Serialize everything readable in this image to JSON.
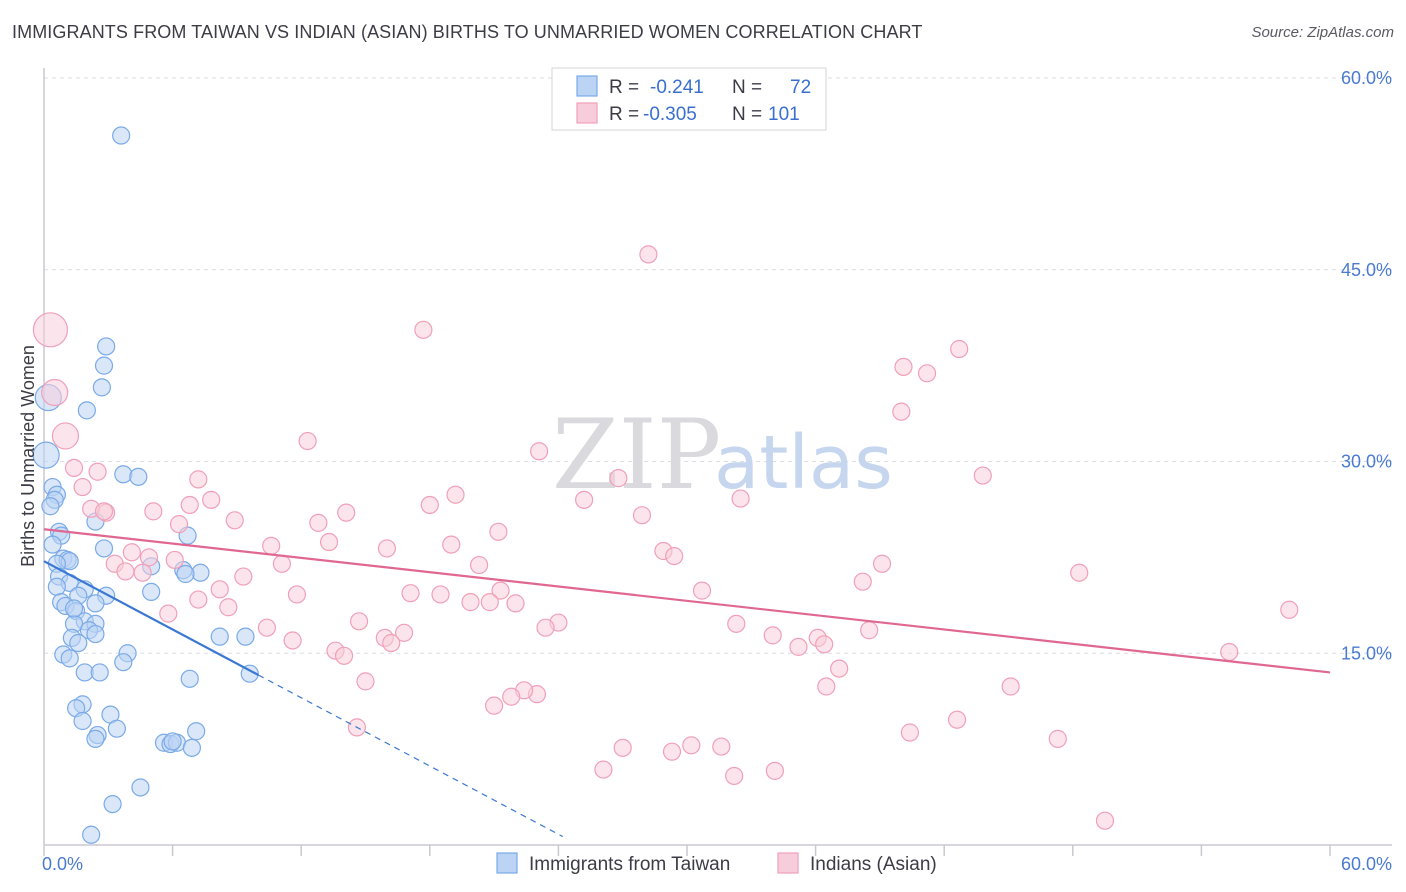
{
  "header": {
    "title": "IMMIGRANTS FROM TAIWAN VS INDIAN (ASIAN) BIRTHS TO UNMARRIED WOMEN CORRELATION CHART",
    "source": "Source: ZipAtlas.com"
  },
  "watermark": {
    "zip": "ZIP",
    "atlas": "atlas"
  },
  "chart_data": {
    "type": "scatter",
    "title": "IMMIGRANTS FROM TAIWAN VS INDIAN (ASIAN) BIRTHS TO UNMARRIED WOMEN CORRELATION CHART",
    "xlabel": "",
    "ylabel": "Births to Unmarried Women",
    "xlim": [
      0,
      60
    ],
    "ylim": [
      0,
      60
    ],
    "x_tick_labels": [
      "0.0%",
      "60.0%"
    ],
    "y_ticks": [
      15,
      30,
      45,
      60
    ],
    "y_tick_labels": [
      "15.0%",
      "30.0%",
      "45.0%",
      "60.0%"
    ],
    "grid": true,
    "legend": {
      "placement": "top-center",
      "r_label": "R =",
      "n_label": "N =",
      "entries": [
        {
          "r": "-0.241",
          "n": "72"
        },
        {
          "r": "-0.305",
          "n": "101"
        }
      ]
    },
    "series": [
      {
        "name": "Immigrants from Taiwan",
        "color": "#7aaae8",
        "fill": "#bcd4f4",
        "line_color": "#3a78d4",
        "trend": {
          "x0": 0,
          "y0": 22.2,
          "x1": 10.0,
          "y1": 13.3,
          "dash_to_x": 24.2
        },
        "points": [
          [
            3.6,
            55.5
          ],
          [
            0.2,
            35.0
          ],
          [
            0.1,
            30.5
          ],
          [
            2.9,
            39.0
          ],
          [
            2.8,
            37.5
          ],
          [
            2.7,
            35.8
          ],
          [
            2.0,
            34.0
          ],
          [
            0.4,
            28.0
          ],
          [
            0.6,
            27.4
          ],
          [
            0.5,
            27.0
          ],
          [
            0.3,
            26.5
          ],
          [
            3.7,
            29.0
          ],
          [
            4.4,
            28.8
          ],
          [
            2.4,
            25.3
          ],
          [
            0.7,
            24.5
          ],
          [
            0.8,
            24.2
          ],
          [
            0.4,
            23.5
          ],
          [
            2.8,
            23.2
          ],
          [
            0.9,
            22.4
          ],
          [
            1.1,
            22.3
          ],
          [
            1.2,
            22.2
          ],
          [
            0.6,
            22.0
          ],
          [
            6.7,
            24.2
          ],
          [
            5.0,
            21.8
          ],
          [
            0.7,
            21.0
          ],
          [
            1.2,
            20.5
          ],
          [
            0.6,
            20.2
          ],
          [
            1.9,
            20.0
          ],
          [
            1.6,
            19.5
          ],
          [
            2.9,
            19.5
          ],
          [
            5.0,
            19.8
          ],
          [
            0.8,
            19.0
          ],
          [
            1.0,
            18.7
          ],
          [
            1.5,
            18.3
          ],
          [
            2.4,
            18.9
          ],
          [
            6.5,
            21.5
          ],
          [
            7.3,
            21.3
          ],
          [
            6.6,
            21.2
          ],
          [
            1.9,
            17.5
          ],
          [
            1.4,
            17.3
          ],
          [
            2.4,
            17.3
          ],
          [
            2.1,
            16.8
          ],
          [
            2.4,
            16.5
          ],
          [
            1.3,
            16.2
          ],
          [
            1.6,
            15.8
          ],
          [
            8.2,
            16.3
          ],
          [
            9.4,
            16.3
          ],
          [
            3.9,
            15.0
          ],
          [
            0.9,
            14.9
          ],
          [
            1.2,
            14.6
          ],
          [
            3.7,
            14.3
          ],
          [
            1.9,
            13.5
          ],
          [
            2.6,
            13.5
          ],
          [
            6.8,
            13.0
          ],
          [
            9.6,
            13.4
          ],
          [
            1.8,
            11.0
          ],
          [
            1.5,
            10.7
          ],
          [
            3.1,
            10.2
          ],
          [
            1.8,
            9.7
          ],
          [
            3.4,
            9.1
          ],
          [
            7.1,
            8.9
          ],
          [
            2.5,
            8.6
          ],
          [
            2.4,
            8.3
          ],
          [
            5.6,
            8.0
          ],
          [
            5.9,
            7.9
          ],
          [
            6.2,
            8.0
          ],
          [
            6.9,
            7.6
          ],
          [
            4.5,
            4.5
          ],
          [
            3.2,
            3.2
          ],
          [
            2.2,
            0.8
          ],
          [
            6.0,
            8.1
          ],
          [
            1.4,
            18.5
          ]
        ]
      },
      {
        "name": "Indians (Asian)",
        "color": "#f0a0b8",
        "fill": "#f8cddb",
        "line_color": "#e06890",
        "trend": {
          "x0": 0,
          "y0": 24.7,
          "x1": 60,
          "y1": 13.5
        },
        "points": [
          [
            0.3,
            40.3
          ],
          [
            0.5,
            35.4
          ],
          [
            1.0,
            32.0
          ],
          [
            1.4,
            29.5
          ],
          [
            2.5,
            29.2
          ],
          [
            1.8,
            28.0
          ],
          [
            2.2,
            26.3
          ],
          [
            2.9,
            26.0
          ],
          [
            28.2,
            46.2
          ],
          [
            17.7,
            40.3
          ],
          [
            42.7,
            38.8
          ],
          [
            40.1,
            37.4
          ],
          [
            41.2,
            36.9
          ],
          [
            40.0,
            33.9
          ],
          [
            12.3,
            31.6
          ],
          [
            23.1,
            30.8
          ],
          [
            26.8,
            28.7
          ],
          [
            43.8,
            28.9
          ],
          [
            7.2,
            28.6
          ],
          [
            7.8,
            27.0
          ],
          [
            6.8,
            26.6
          ],
          [
            18.0,
            26.6
          ],
          [
            19.2,
            27.4
          ],
          [
            25.2,
            27.0
          ],
          [
            32.5,
            27.1
          ],
          [
            5.1,
            26.1
          ],
          [
            14.1,
            26.0
          ],
          [
            27.9,
            25.8
          ],
          [
            8.9,
            25.4
          ],
          [
            6.3,
            25.1
          ],
          [
            12.8,
            25.2
          ],
          [
            21.2,
            24.5
          ],
          [
            13.3,
            23.7
          ],
          [
            10.6,
            23.4
          ],
          [
            16.0,
            23.2
          ],
          [
            19.0,
            23.5
          ],
          [
            28.9,
            23.0
          ],
          [
            4.1,
            22.9
          ],
          [
            4.9,
            22.5
          ],
          [
            6.1,
            22.3
          ],
          [
            29.4,
            22.6
          ],
          [
            39.1,
            22.0
          ],
          [
            3.3,
            22.0
          ],
          [
            11.1,
            22.0
          ],
          [
            20.3,
            21.9
          ],
          [
            3.8,
            21.4
          ],
          [
            4.6,
            21.3
          ],
          [
            9.3,
            21.0
          ],
          [
            48.3,
            21.3
          ],
          [
            38.2,
            20.6
          ],
          [
            8.2,
            20.0
          ],
          [
            11.8,
            19.6
          ],
          [
            17.1,
            19.7
          ],
          [
            18.5,
            19.6
          ],
          [
            21.3,
            19.9
          ],
          [
            30.7,
            19.9
          ],
          [
            7.2,
            19.2
          ],
          [
            19.9,
            19.0
          ],
          [
            20.8,
            19.0
          ],
          [
            22.0,
            18.9
          ],
          [
            8.6,
            18.6
          ],
          [
            5.8,
            18.1
          ],
          [
            58.1,
            18.4
          ],
          [
            14.7,
            17.5
          ],
          [
            24.0,
            17.4
          ],
          [
            32.3,
            17.3
          ],
          [
            23.4,
            17.0
          ],
          [
            10.4,
            17.0
          ],
          [
            16.8,
            16.6
          ],
          [
            38.5,
            16.8
          ],
          [
            36.1,
            16.2
          ],
          [
            15.9,
            16.2
          ],
          [
            16.2,
            15.8
          ],
          [
            11.6,
            16.0
          ],
          [
            34.0,
            16.4
          ],
          [
            35.2,
            15.5
          ],
          [
            13.6,
            15.2
          ],
          [
            36.4,
            15.7
          ],
          [
            14.0,
            14.8
          ],
          [
            55.3,
            15.1
          ],
          [
            37.1,
            13.8
          ],
          [
            15.0,
            12.8
          ],
          [
            36.5,
            12.4
          ],
          [
            45.1,
            12.4
          ],
          [
            23.0,
            11.8
          ],
          [
            22.4,
            12.1
          ],
          [
            21.8,
            11.6
          ],
          [
            21.0,
            10.9
          ],
          [
            14.6,
            9.2
          ],
          [
            42.6,
            9.8
          ],
          [
            40.4,
            8.8
          ],
          [
            47.3,
            8.3
          ],
          [
            31.6,
            7.7
          ],
          [
            27.0,
            7.6
          ],
          [
            29.3,
            7.3
          ],
          [
            30.2,
            7.8
          ],
          [
            26.1,
            5.9
          ],
          [
            32.2,
            5.4
          ],
          [
            34.1,
            5.8
          ],
          [
            49.5,
            1.9
          ],
          [
            2.8,
            26.1
          ]
        ]
      }
    ]
  },
  "bottom_legend": {
    "items": [
      "Immigrants from Taiwan",
      "Indians (Asian)"
    ]
  }
}
